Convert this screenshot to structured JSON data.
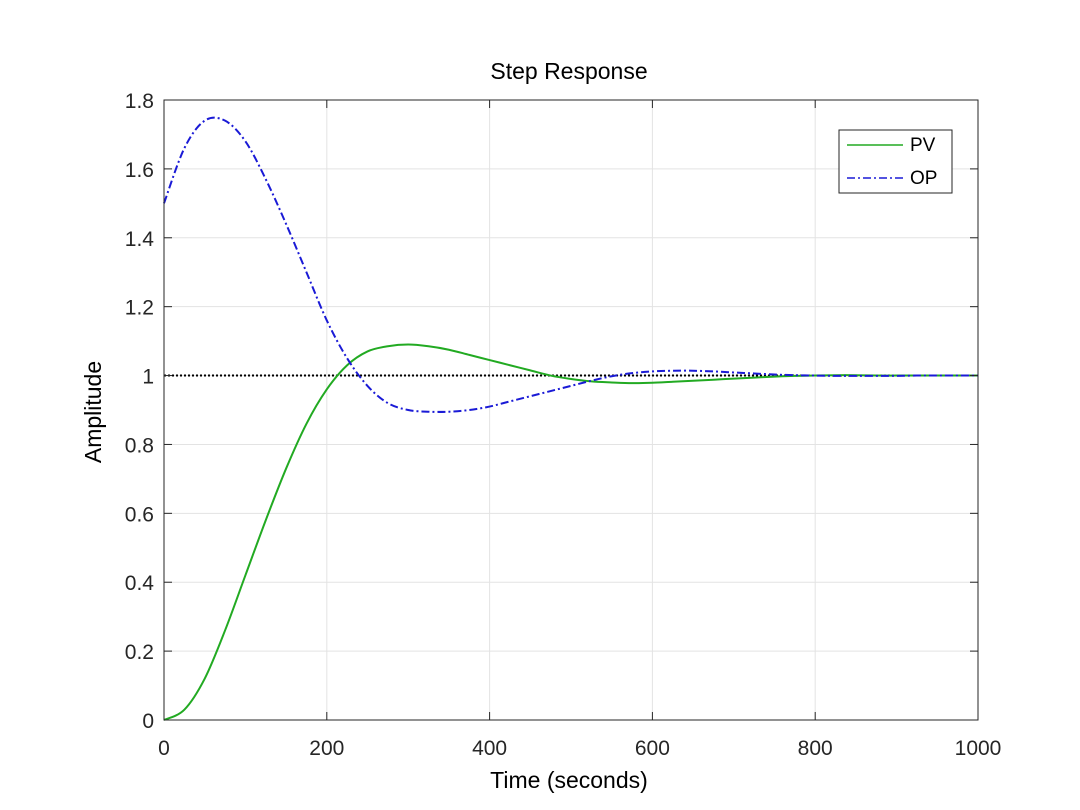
{
  "chart_data": {
    "type": "line",
    "title": "Step Response",
    "xlabel": "Time (seconds)",
    "ylabel": "Amplitude",
    "xlim": [
      0,
      1000
    ],
    "ylim": [
      0,
      1.8
    ],
    "xticks": [
      0,
      200,
      400,
      600,
      800,
      1000
    ],
    "yticks": [
      0,
      0.2,
      0.4,
      0.6,
      0.8,
      1,
      1.2,
      1.4,
      1.6,
      1.8
    ],
    "xtick_labels": [
      "0",
      "200",
      "400",
      "600",
      "800",
      "1000"
    ],
    "ytick_labels": [
      "0",
      "0.2",
      "0.4",
      "0.6",
      "0.8",
      "1",
      "1.2",
      "1.4",
      "1.6",
      "1.8"
    ],
    "grid": true,
    "legend_position": "top-right",
    "x": [
      0,
      25,
      50,
      75,
      100,
      125,
      150,
      175,
      200,
      225,
      250,
      275,
      300,
      325,
      350,
      375,
      400,
      425,
      450,
      475,
      500,
      525,
      550,
      575,
      600,
      625,
      650,
      675,
      700,
      725,
      750,
      775,
      800,
      825,
      850,
      875,
      900,
      925,
      950,
      975,
      1000
    ],
    "series": [
      {
        "name": "PV",
        "color": "#22aa22",
        "dash": "solid",
        "values": [
          0,
          0.03,
          0.12,
          0.26,
          0.42,
          0.58,
          0.73,
          0.86,
          0.96,
          1.03,
          1.07,
          1.085,
          1.09,
          1.085,
          1.075,
          1.06,
          1.045,
          1.03,
          1.015,
          1.0,
          0.99,
          0.983,
          0.98,
          0.978,
          0.979,
          0.982,
          0.985,
          0.988,
          0.991,
          0.994,
          0.997,
          0.999,
          1.0,
          1.001,
          1.001,
          1.0,
          1.0,
          1.0,
          1.0,
          1.0,
          1.0
        ]
      },
      {
        "name": "OP",
        "color": "#1a1ad6",
        "dash": "dashdot",
        "values": [
          1.5,
          1.66,
          1.74,
          1.74,
          1.68,
          1.57,
          1.44,
          1.3,
          1.16,
          1.05,
          0.97,
          0.92,
          0.9,
          0.895,
          0.895,
          0.9,
          0.91,
          0.925,
          0.94,
          0.955,
          0.97,
          0.985,
          0.998,
          1.007,
          1.012,
          1.014,
          1.014,
          1.012,
          1.009,
          1.006,
          1.003,
          1.001,
          1.0,
          0.999,
          0.999,
          0.999,
          0.999,
          1.0,
          1.0,
          1.0,
          1.0
        ]
      }
    ],
    "reference_line": {
      "y": 1,
      "color": "#000000",
      "style": "dotted"
    }
  }
}
